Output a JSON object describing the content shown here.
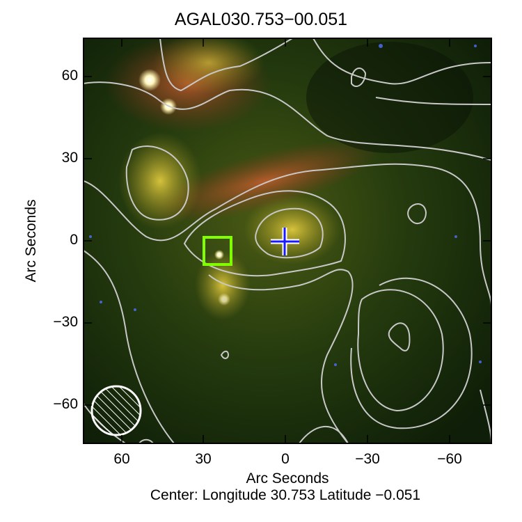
{
  "title": "AGAL030.753−00.051",
  "xaxis": {
    "label": "Arc Seconds",
    "ticks": [
      "60",
      "30",
      "0",
      "−30",
      "−60"
    ],
    "range": [
      74,
      -74
    ]
  },
  "yaxis": {
    "label": "Arc Seconds",
    "ticks": [
      "60",
      "30",
      "0",
      "−30",
      "−60"
    ],
    "range": [
      -74,
      74
    ]
  },
  "footer": "Center:  Longitude 30.753 Latitude −0.051",
  "markers": {
    "cross_color": "#1a1aff",
    "box_color": "#7fff00",
    "contour_color": "#c8c8c8",
    "beam": "hatched-circle"
  }
}
